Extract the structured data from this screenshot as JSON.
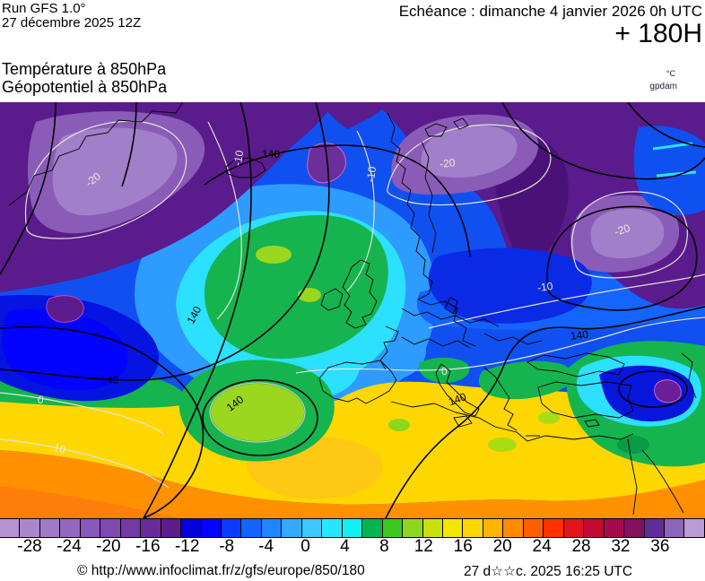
{
  "header": {
    "run_model": "Run GFS 1.0°",
    "run_date": "27 décembre 2025 12Z",
    "echeance": "Echéance : dimanche 4 janvier 2026 0h UTC",
    "forecast_offset": "+ 180H",
    "param_line1": "Température à 850hPa",
    "param_line2": "Géopotentiel à 850hPa",
    "unit_temperature": "°C",
    "unit_geopotential": "gpdam"
  },
  "map": {
    "labels": {
      "geopotential": "140",
      "temp_minus20": "-20",
      "temp_minus10": "-10",
      "temp_zero": "0",
      "temp_plus10": "10"
    }
  },
  "colorbar": {
    "cells": [
      "#b594d3",
      "#aa87cd",
      "#9f7ac7",
      "#9467c1",
      "#8958bb",
      "#7e49b1",
      "#733aa5",
      "#682b99",
      "#5d1c8d",
      "#0202dd",
      "#0202ff",
      "#0a3cff",
      "#1464ff",
      "#1e87ff",
      "#32aaff",
      "#3cc8ff",
      "#28e6ff",
      "#0ff0f0",
      "#00b450",
      "#3cc81e",
      "#8cd71e",
      "#c8e10a",
      "#f5e600",
      "#ffd700",
      "#ffb400",
      "#ff8c00",
      "#ff5f00",
      "#ff3200",
      "#e1141e",
      "#c30a32",
      "#a50a4b",
      "#870f5f",
      "#5f2d9b",
      "#8c64b9",
      "#b99bd6"
    ],
    "tick_labels": [
      "-28",
      "-24",
      "-20",
      "-16",
      "-12",
      "-8",
      "-4",
      "0",
      "4",
      "8",
      "12",
      "16",
      "20",
      "24",
      "28",
      "32",
      "36"
    ]
  },
  "footer": {
    "copyright": "© http://www.infoclimat.fr/z/gfs/europe/850/180",
    "generated": "27 d☆☆c. 2025 16:25 UTC"
  }
}
